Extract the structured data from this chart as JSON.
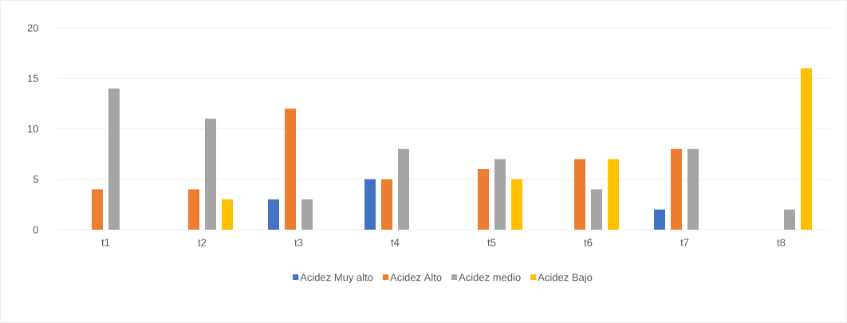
{
  "chart_data": {
    "type": "bar",
    "categories": [
      "t1",
      "t2",
      "t3",
      "t4",
      "t5",
      "t6",
      "t7",
      "t8"
    ],
    "series": [
      {
        "name": "Acidez Muy alto",
        "color": "#4472c4",
        "values": [
          null,
          null,
          3,
          5,
          null,
          null,
          2,
          null
        ]
      },
      {
        "name": "Acidez Alto",
        "color": "#ed7d31",
        "values": [
          4,
          4,
          12,
          5,
          6,
          7,
          8,
          null
        ]
      },
      {
        "name": "Acidez medio",
        "color": "#a5a5a5",
        "values": [
          14,
          11,
          3,
          8,
          7,
          4,
          8,
          2
        ]
      },
      {
        "name": "Acidez Bajo",
        "color": "#ffc000",
        "values": [
          null,
          3,
          null,
          null,
          5,
          7,
          null,
          16
        ]
      }
    ],
    "ylim": [
      0,
      20
    ],
    "yticks": [
      0,
      5,
      10,
      15,
      20
    ],
    "grid": "y",
    "legend": "bottom"
  }
}
